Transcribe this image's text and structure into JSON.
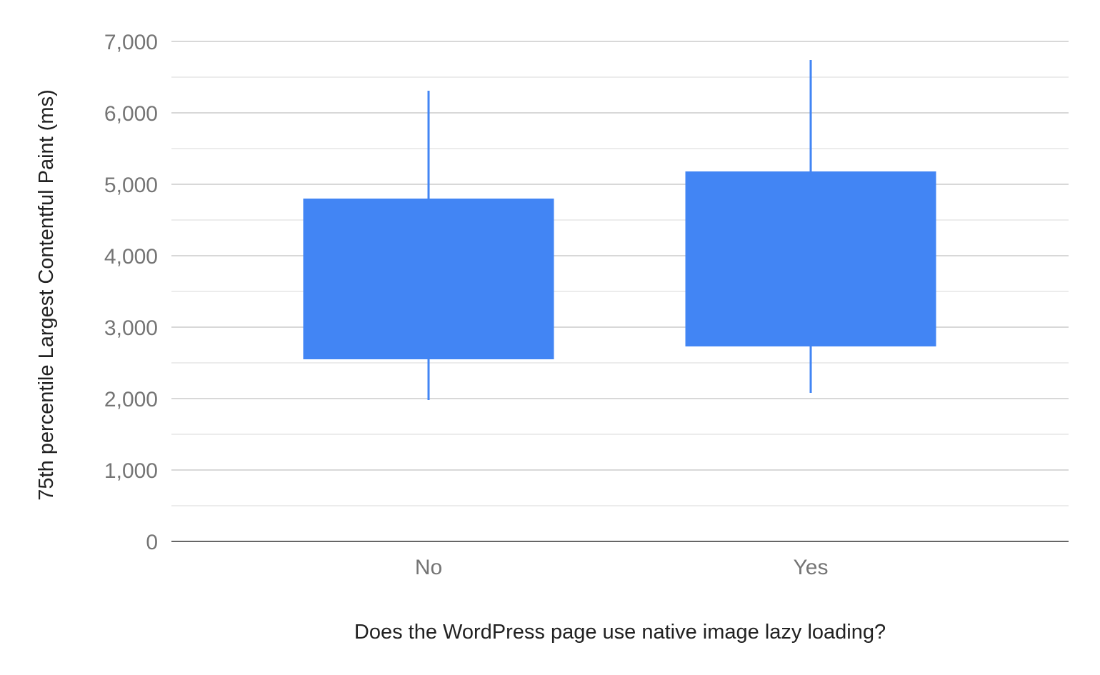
{
  "chart_data": {
    "type": "candlestick",
    "title": "",
    "xlabel": "Does the WordPress page use native image lazy loading?",
    "ylabel": "75th percentile Largest Contentful Paint (ms)",
    "ylim": [
      0,
      7000
    ],
    "yticks": [
      0,
      1000,
      2000,
      3000,
      4000,
      5000,
      6000,
      7000
    ],
    "ytick_labels": [
      "0",
      "1,000",
      "2,000",
      "3,000",
      "4,000",
      "5,000",
      "6,000",
      "7,000"
    ],
    "categories": [
      "No",
      "Yes"
    ],
    "series": [
      {
        "low": [
          1980,
          2080
        ],
        "open": [
          2550,
          2730
        ],
        "close": [
          4800,
          5180
        ],
        "high": [
          6310,
          6740
        ]
      }
    ],
    "grid": true,
    "minor_grid": true,
    "legend": "none",
    "colors": {
      "candle": "#4285f4",
      "grid": "#cccccc",
      "minor_grid": "#e6e6e6",
      "axis": "#333333",
      "tick_text": "#757575",
      "label_text": "#222222"
    }
  }
}
